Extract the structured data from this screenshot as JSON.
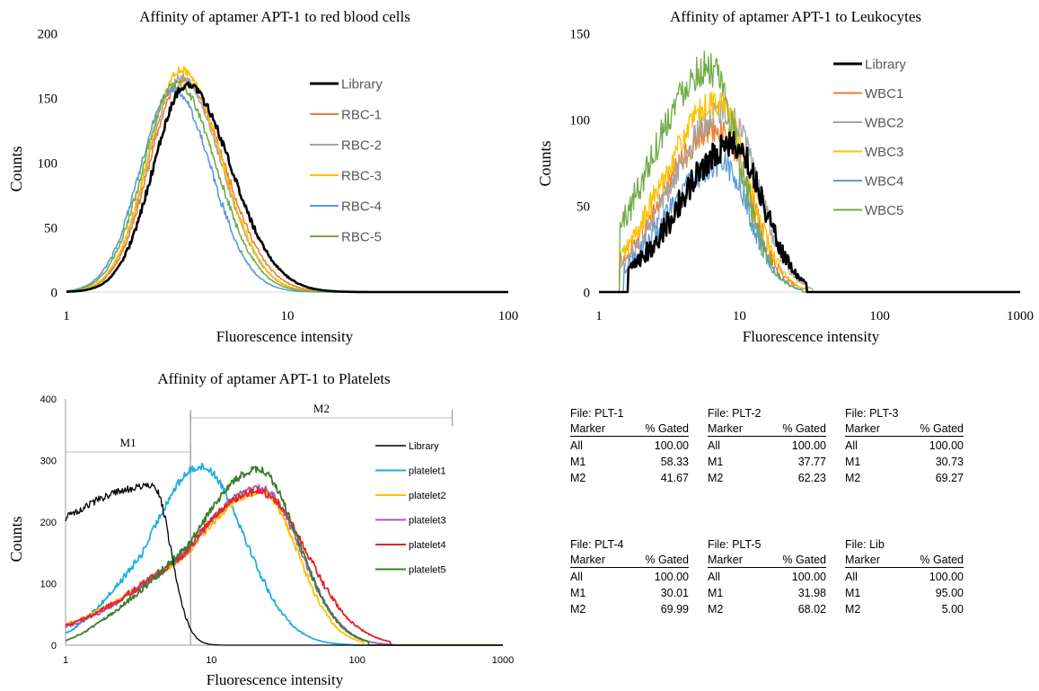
{
  "chart_data": [
    {
      "type": "line",
      "title": "Affinity of aptamer APT-1 to red blood cells",
      "xlabel": "Fluorescence intensity",
      "ylabel": "Counts",
      "x_scale": "log",
      "xlim": [
        1,
        100
      ],
      "ylim": [
        0,
        200
      ],
      "x_ticks": [
        "1",
        "10",
        "100"
      ],
      "y_ticks": [
        "0",
        "50",
        "100",
        "150",
        "200"
      ],
      "grid": false,
      "legend_position": "right-inside",
      "series": [
        {
          "name": "Library",
          "color": "#000000",
          "peak_x": 3.5,
          "peak": 160,
          "width_left": 0.15,
          "width_right": 0.2,
          "noise": 3
        },
        {
          "name": "RBC-1",
          "color": "#ED7D31",
          "peak_x": 3.35,
          "peak": 163,
          "width_left": 0.15,
          "width_right": 0.19,
          "noise": 3
        },
        {
          "name": "RBC-2",
          "color": "#A5A5A5",
          "peak_x": 3.3,
          "peak": 166,
          "width_left": 0.15,
          "width_right": 0.18,
          "noise": 3
        },
        {
          "name": "RBC-3",
          "color": "#FFC000",
          "peak_x": 3.3,
          "peak": 172,
          "width_left": 0.15,
          "width_right": 0.18,
          "noise": 3
        },
        {
          "name": "RBC-4",
          "color": "#5B9BD5",
          "peak_x": 3.05,
          "peak": 157,
          "width_left": 0.15,
          "width_right": 0.17,
          "noise": 3
        },
        {
          "name": "RBC-5",
          "color": "#70AD47",
          "peak_x": 3.15,
          "peak": 161,
          "width_left": 0.15,
          "width_right": 0.18,
          "noise": 3
        }
      ]
    },
    {
      "type": "line",
      "title": "Affinity of aptamer APT-1 to Leukocytes",
      "xlabel": "Fluorescence intensity",
      "ylabel": "Counts",
      "x_scale": "log",
      "xlim": [
        1,
        1000
      ],
      "ylim": [
        0,
        150
      ],
      "x_ticks": [
        "1",
        "10",
        "100",
        "1000"
      ],
      "y_ticks": [
        "0",
        "50",
        "100",
        "150"
      ],
      "grid": false,
      "legend_position": "right-inside",
      "series": [
        {
          "name": "Library",
          "color": "#000000",
          "peak_x": 9,
          "peak": 85,
          "width_left": 0.38,
          "width_right": 0.22,
          "noise": 8,
          "start_x": 1.6,
          "end_x": 30
        },
        {
          "name": "WBC1",
          "color": "#ED7D31",
          "peak_x": 7,
          "peak": 95,
          "width_left": 0.38,
          "width_right": 0.22,
          "noise": 8,
          "start_x": 1.4,
          "end_x": 30
        },
        {
          "name": "WBC2",
          "color": "#A5A5A5",
          "peak_x": 8,
          "peak": 105,
          "width_left": 0.38,
          "width_right": 0.22,
          "noise": 8,
          "start_x": 1.4,
          "end_x": 33
        },
        {
          "name": "WBC3",
          "color": "#FFC000",
          "peak_x": 7,
          "peak": 110,
          "width_left": 0.38,
          "width_right": 0.22,
          "noise": 8,
          "start_x": 1.4,
          "end_x": 30
        },
        {
          "name": "WBC4",
          "color": "#5B9BD5",
          "peak_x": 7.5,
          "peak": 75,
          "width_left": 0.38,
          "width_right": 0.2,
          "noise": 8,
          "start_x": 1.5,
          "end_x": 28
        },
        {
          "name": "WBC5",
          "color": "#70AD47",
          "peak_x": 6,
          "peak": 130,
          "width_left": 0.4,
          "width_right": 0.22,
          "noise": 10,
          "start_x": 1.4,
          "end_x": 28
        }
      ]
    },
    {
      "type": "line",
      "title": "Affinity of aptamer APT-1 to Platelets",
      "xlabel": "Fluorescence intensity",
      "ylabel": "Counts",
      "x_scale": "log",
      "xlim": [
        1,
        1000
      ],
      "ylim": [
        0,
        400
      ],
      "x_ticks": [
        "1",
        "10",
        "100",
        "1000"
      ],
      "y_ticks": [
        "0",
        "100",
        "200",
        "300",
        "400"
      ],
      "grid": false,
      "legend_position": "right-inside",
      "markers": [
        {
          "label": "M1",
          "x_start": 1,
          "x_end": 7.2
        },
        {
          "label": "M2",
          "x_start": 7.2,
          "x_end": 450
        }
      ],
      "series": [
        {
          "name": "Library",
          "color": "#000000",
          "peak_x": 4,
          "peak": 258,
          "width_left": 0.9,
          "width_right": 0.12,
          "noise": 6,
          "start_y": 130,
          "end_x": 15
        },
        {
          "name": "platelet1",
          "color": "#1FAEE3",
          "peak_x": 8.5,
          "peak": 290,
          "width_left": 0.35,
          "width_right": 0.3,
          "noise": 6,
          "start_y": 20,
          "end_x": 95
        },
        {
          "name": "platelet2",
          "color": "#FFC000",
          "peak_x": 22,
          "peak": 248,
          "width_left": 0.5,
          "width_right": 0.25,
          "noise": 6,
          "start_y": 35,
          "end_x": 110
        },
        {
          "name": "platelet3",
          "color": "#9E5FB5",
          "peak_x": 22,
          "peak": 255,
          "width_left": 0.5,
          "width_right": 0.27,
          "noise": 6,
          "start_y": 30,
          "end_x": 180
        },
        {
          "name": "platelet4",
          "color": "#E82228",
          "peak_x": 21,
          "peak": 250,
          "width_left": 0.5,
          "width_right": 0.33,
          "noise": 6,
          "start_y": 33,
          "end_x": 170
        },
        {
          "name": "platelet5",
          "color": "#3A7D2C",
          "peak_x": 21,
          "peak": 285,
          "width_left": 0.45,
          "width_right": 0.27,
          "noise": 6,
          "start_y": 8,
          "end_x": 120
        }
      ]
    }
  ],
  "gating_tables": [
    {
      "file": "File: PLT-1",
      "header": [
        "Marker",
        "% Gated"
      ],
      "rows": [
        [
          "All",
          "100.00"
        ],
        [
          "M1",
          "58.33"
        ],
        [
          "M2",
          "41.67"
        ]
      ]
    },
    {
      "file": "File: PLT-2",
      "header": [
        "Marker",
        "% Gated"
      ],
      "rows": [
        [
          "All",
          "100.00"
        ],
        [
          "M1",
          "37.77"
        ],
        [
          "M2",
          "62.23"
        ]
      ]
    },
    {
      "file": "File: PLT-3",
      "header": [
        "Marker",
        "% Gated"
      ],
      "rows": [
        [
          "All",
          "100.00"
        ],
        [
          "M1",
          "30.73"
        ],
        [
          "M2",
          "69.27"
        ]
      ]
    },
    {
      "file": "File: PLT-4",
      "header": [
        "Marker",
        "% Gated"
      ],
      "rows": [
        [
          "All",
          "100.00"
        ],
        [
          "M1",
          "30.01"
        ],
        [
          "M2",
          "69.99"
        ]
      ]
    },
    {
      "file": "File: PLT-5",
      "header": [
        "Marker",
        "% Gated"
      ],
      "rows": [
        [
          "All",
          "100.00"
        ],
        [
          "M1",
          "31.98"
        ],
        [
          "M2",
          "68.02"
        ]
      ]
    },
    {
      "file": "File: Lib",
      "header": [
        "Marker",
        "% Gated"
      ],
      "rows": [
        [
          "All",
          "100.00"
        ],
        [
          "M1",
          "95.00"
        ],
        [
          "M2",
          "5.00"
        ]
      ]
    }
  ]
}
